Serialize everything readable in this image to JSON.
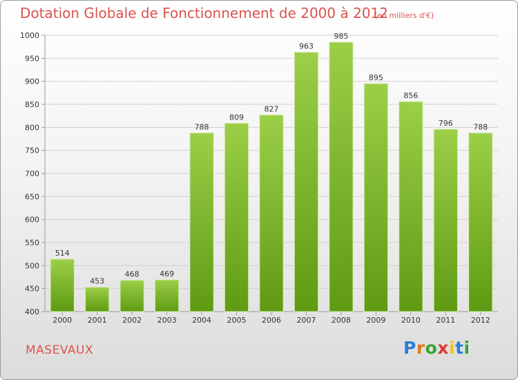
{
  "header": {
    "title": "Dotation Globale de Fonctionnement de 2000 à 2012",
    "unit_note": "(en milliers d'€)"
  },
  "footer": {
    "commune": "MASEVAUX",
    "brand": {
      "letters": [
        "P",
        "r",
        "o",
        "x",
        "i",
        "t",
        "i"
      ],
      "colors": [
        "#2a7fd4",
        "#e07b16",
        "#3aa335",
        "#d93b2f",
        "#f0c419",
        "#2a7fd4",
        "#3aa335"
      ]
    }
  },
  "chart_data": {
    "type": "bar",
    "title": "Dotation Globale de Fonctionnement de 2000 à 2012",
    "subtitle": "(en milliers d'€)",
    "xlabel": "",
    "ylabel": "",
    "categories": [
      "2000",
      "2001",
      "2002",
      "2003",
      "2004",
      "2005",
      "2006",
      "2007",
      "2008",
      "2009",
      "2010",
      "2011",
      "2012"
    ],
    "values": [
      514,
      453,
      468,
      469,
      788,
      809,
      827,
      963,
      985,
      895,
      856,
      796,
      788
    ],
    "ylim": [
      400,
      1000
    ],
    "yticks": [
      400,
      450,
      500,
      550,
      600,
      650,
      700,
      750,
      800,
      850,
      900,
      950,
      1000
    ],
    "grid": true,
    "colors": {
      "bar_top": "#9ccf48",
      "bar_bottom": "#5f9a13",
      "bar_stroke": "#d6ecb0",
      "grid": "#d0d0d0",
      "axis": "#999999"
    }
  }
}
